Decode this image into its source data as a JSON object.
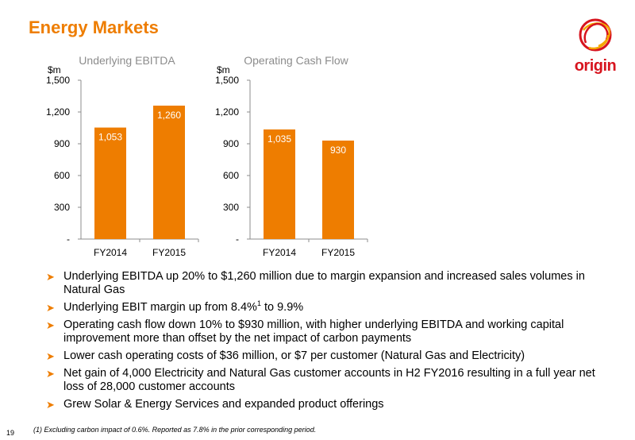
{
  "slide": {
    "title": "Energy Markets",
    "logo_text": "origin",
    "page_number": "19",
    "footnote": "(1)   Excluding carbon impact of 0.6%. Reported as 7.8% in the prior corresponding period."
  },
  "colors": {
    "accent": "#ee7d00",
    "bar": "#ee7d00",
    "logo_red": "#d7141e",
    "logo_yellow": "#f5a800"
  },
  "bullets": [
    {
      "text": "Underlying EBITDA up 20% to $1,260 million due to margin expansion and increased sales volumes in Natural Gas"
    },
    {
      "text": "Underlying EBIT margin up from 8.4%",
      "sup": "1",
      "after": " to 9.9%"
    },
    {
      "text": "Operating cash flow down 10% to $930 million, with higher underlying EBITDA and working capital improvement more than offset by the net impact of carbon payments"
    },
    {
      "text": "Lower cash operating costs of $36 million, or $7 per customer (Natural Gas and Electricity)"
    },
    {
      "text": "Net gain of 4,000 Electricity and Natural Gas customer accounts in H2 FY2016 resulting in a full year net loss of 28,000 customer accounts"
    },
    {
      "text": "Grew Solar & Energy Services and expanded product offerings"
    }
  ],
  "chart_data": [
    {
      "type": "bar",
      "title": "Underlying EBITDA",
      "ylabel": "$m",
      "categories": [
        "FY2014",
        "FY2015"
      ],
      "values": [
        1053,
        1260
      ],
      "data_labels": [
        "1,053",
        "1,260"
      ],
      "ylim": [
        0,
        1500
      ],
      "yticks": [
        0,
        300,
        600,
        900,
        1200,
        1500
      ],
      "ytick_labels": [
        "-",
        "300",
        "600",
        "900",
        "1,200",
        "1,500"
      ],
      "grid": false,
      "legend": "none"
    },
    {
      "type": "bar",
      "title": "Operating Cash Flow",
      "ylabel": "$m",
      "categories": [
        "FY2014",
        "FY2015"
      ],
      "values": [
        1035,
        930
      ],
      "data_labels": [
        "1,035",
        "930"
      ],
      "ylim": [
        0,
        1500
      ],
      "yticks": [
        0,
        300,
        600,
        900,
        1200,
        1500
      ],
      "ytick_labels": [
        "-",
        "300",
        "600",
        "900",
        "1,200",
        "1,500"
      ],
      "grid": false,
      "legend": "none"
    }
  ]
}
